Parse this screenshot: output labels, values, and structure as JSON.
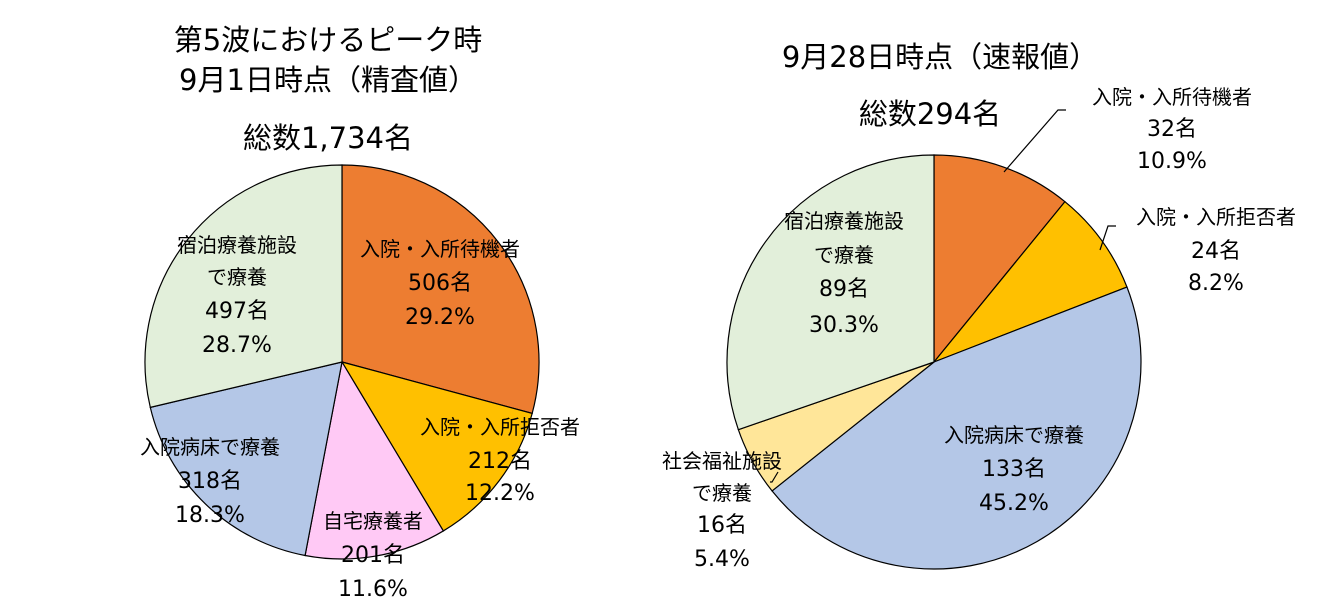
{
  "chart_data": [
    {
      "type": "pie",
      "title": "第5波におけるピーク時",
      "subtitle": "9月1日時点（精査値）",
      "total_label": "総数1,734名",
      "slices": [
        {
          "label": "入院・入所待機者",
          "count": "506名",
          "percent": "29.2%",
          "value": 29.2,
          "color": "#ed7d31"
        },
        {
          "label": "入院・入所拒否者",
          "count": "212名",
          "percent": "12.2%",
          "value": 12.2,
          "color": "#ffc000"
        },
        {
          "label": "自宅療養者",
          "count": "201名",
          "percent": "11.6%",
          "value": 11.6,
          "color": "#ffc9f5"
        },
        {
          "label": "入院病床で療養",
          "count": "318名",
          "percent": "18.3%",
          "value": 18.3,
          "color": "#b4c7e7"
        },
        {
          "label": "宿泊療養施設で療養",
          "label_lines": [
            "宿泊療養施設",
            "で療養"
          ],
          "count": "497名",
          "percent": "28.7%",
          "value": 28.7,
          "color": "#e2efda"
        }
      ]
    },
    {
      "type": "pie",
      "title": "9月28日時点（速報値）",
      "total_label": "総数294名",
      "slices": [
        {
          "label": "入院・入所待機者",
          "count": "32名",
          "percent": "10.9%",
          "value": 10.9,
          "color": "#ed7d31"
        },
        {
          "label": "入院・入所拒否者",
          "count": "24名",
          "percent": "8.2%",
          "value": 8.2,
          "color": "#ffc000"
        },
        {
          "label": "入院病床で療養",
          "count": "133名",
          "percent": "45.2%",
          "value": 45.2,
          "color": "#b4c7e7"
        },
        {
          "label": "社会福祉施設で療養",
          "label_lines": [
            "社会福祉施設",
            "で療養"
          ],
          "count": "16名",
          "percent": "5.4%",
          "value": 5.4,
          "color": "#ffe699"
        },
        {
          "label": "宿泊療養施設で療養",
          "label_lines": [
            "宿泊療養施設",
            "で療養"
          ],
          "count": "89名",
          "percent": "30.3%",
          "value": 30.3,
          "color": "#e2efda"
        }
      ]
    }
  ]
}
